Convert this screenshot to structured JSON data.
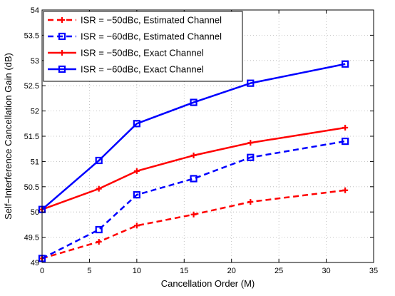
{
  "chart_data": {
    "type": "line",
    "xlabel": "Cancellation Order (M)",
    "ylabel": "Self−Interference Cancellation Gain (dB)",
    "xlim": [
      0,
      35
    ],
    "ylim": [
      49,
      54
    ],
    "xticks": [
      "0",
      "5",
      "10",
      "15",
      "20",
      "25",
      "30",
      "35"
    ],
    "yticks": [
      "49",
      "49.5",
      "50",
      "50.5",
      "51",
      "51.5",
      "52",
      "52.5",
      "53",
      "53.5",
      "54"
    ],
    "legend_position": "top-left",
    "grid": true,
    "series": [
      {
        "name": "ISR = −50dBc, Estimated Channel",
        "color": "#ff0000",
        "line_style": "dashed",
        "marker": "plus",
        "x": [
          0,
          6,
          10,
          16,
          22,
          32
        ],
        "y": [
          49.08,
          49.41,
          49.73,
          49.95,
          50.2,
          50.43
        ]
      },
      {
        "name": "ISR = −60dBc, Estimated Channel",
        "color": "#0000ff",
        "line_style": "dashed",
        "marker": "square",
        "x": [
          0,
          6,
          10,
          16,
          22,
          32
        ],
        "y": [
          49.08,
          49.65,
          50.34,
          50.66,
          51.08,
          51.4
        ]
      },
      {
        "name": "ISR = −50dBc, Exact Channel",
        "color": "#ff0000",
        "line_style": "solid",
        "marker": "plus",
        "x": [
          0,
          6,
          10,
          16,
          22,
          32
        ],
        "y": [
          50.05,
          50.46,
          50.81,
          51.12,
          51.37,
          51.67
        ]
      },
      {
        "name": "ISR = −60dBc, Exact Channel",
        "color": "#0000ff",
        "line_style": "solid",
        "marker": "square",
        "x": [
          0,
          6,
          10,
          16,
          22,
          32
        ],
        "y": [
          50.05,
          51.02,
          51.75,
          52.17,
          52.55,
          52.93
        ]
      }
    ]
  }
}
